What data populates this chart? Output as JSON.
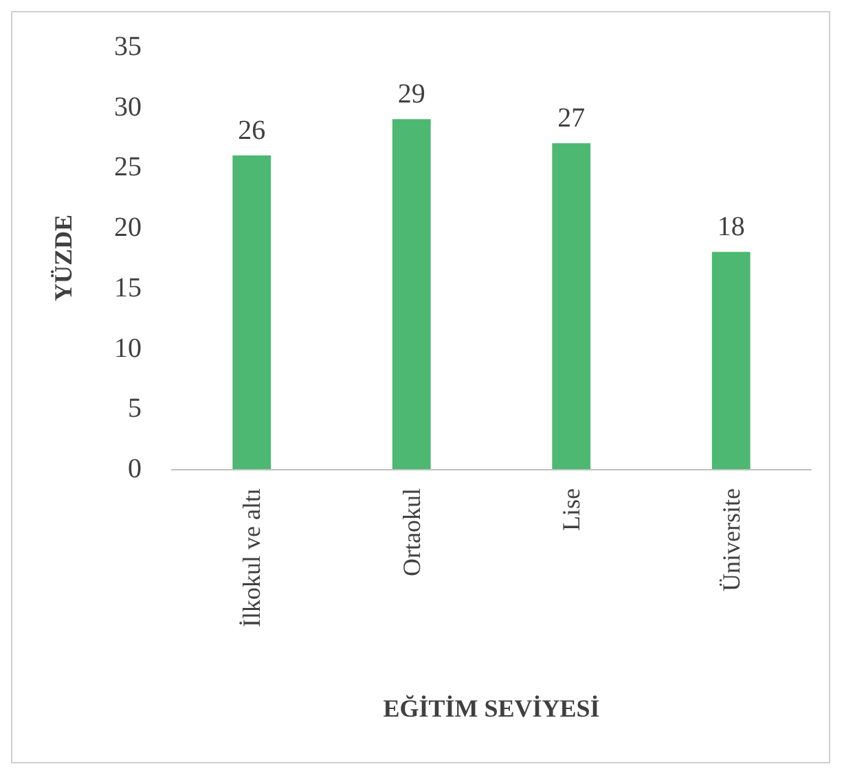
{
  "chart_data": {
    "type": "bar",
    "xlabel": "EĞİTİM SEVİYESİ",
    "ylabel": "YÜZDE",
    "categories": [
      "İlkokul ve altı",
      "Ortaokul",
      "Lise",
      "Üniversite"
    ],
    "values": [
      26,
      29,
      27,
      18
    ],
    "color": "#4cb871",
    "ylim": [
      0,
      35
    ],
    "yticks": [
      0,
      5,
      10,
      15,
      20,
      25,
      30,
      35
    ],
    "grid": false,
    "data_labels": true
  }
}
